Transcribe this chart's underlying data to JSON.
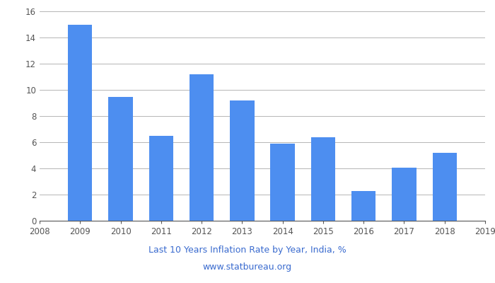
{
  "years": [
    2009,
    2010,
    2011,
    2012,
    2013,
    2014,
    2015,
    2016,
    2017,
    2018
  ],
  "values": [
    14.97,
    9.47,
    6.49,
    11.17,
    9.19,
    5.88,
    6.37,
    2.28,
    4.04,
    5.21
  ],
  "bar_color": "#4d8ef0",
  "xlim": [
    2008,
    2019
  ],
  "ylim": [
    0,
    16
  ],
  "yticks": [
    0,
    2,
    4,
    6,
    8,
    10,
    12,
    14,
    16
  ],
  "xticks": [
    2008,
    2009,
    2010,
    2011,
    2012,
    2013,
    2014,
    2015,
    2016,
    2017,
    2018,
    2019
  ],
  "title_line1": "Last 10 Years Inflation Rate by Year, India, %",
  "title_line2": "www.statbureau.org",
  "title_fontsize": 9,
  "background_color": "#ffffff",
  "grid_color": "#aaaaaa",
  "bar_width": 0.6,
  "tick_color": "#555555",
  "tick_fontsize": 8.5,
  "title_color": "#3a6bcf"
}
